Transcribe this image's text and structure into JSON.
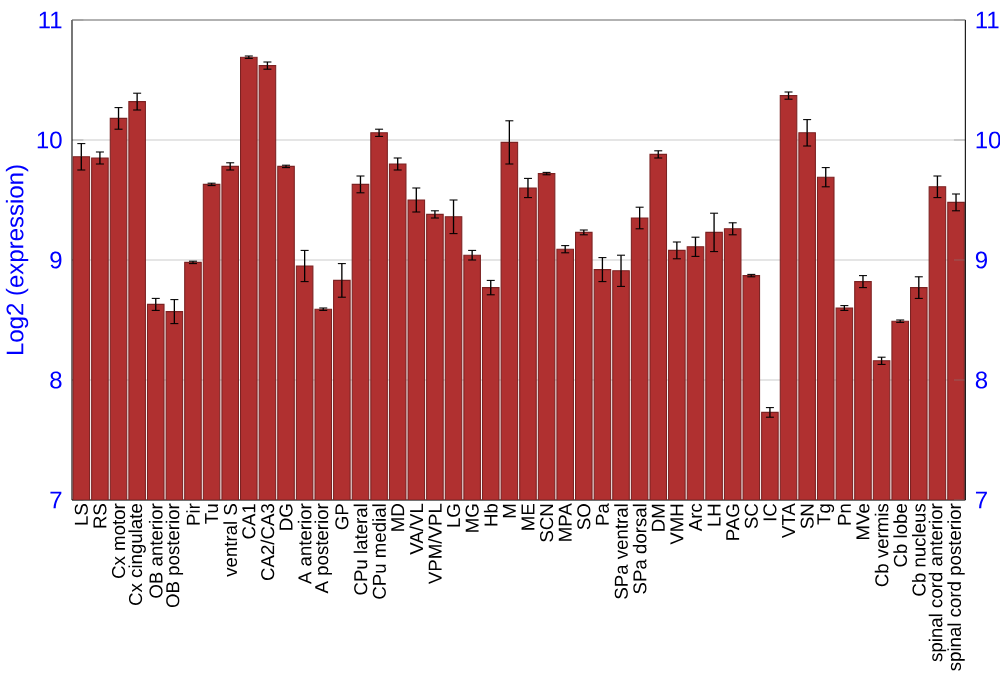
{
  "chart_data": {
    "type": "bar",
    "ylabel": "Log2 (expression)",
    "categories": [
      "LS",
      "RS",
      "Cx motor",
      "Cx cingulate",
      "OB anterior",
      "OB posterior",
      "Pir",
      "Tu",
      "ventral S",
      "CA1",
      "CA2/CA3",
      "DG",
      "A anterior",
      "A posterior",
      "GP",
      "CPu lateral",
      "CPu medial",
      "MD",
      "VA/VL",
      "VPM/VPL",
      "LG",
      "MG",
      "Hb",
      "M",
      "ME",
      "SCN",
      "MPA",
      "SO",
      "Pa",
      "SPa ventral",
      "SPa dorsal",
      "DM",
      "VMH",
      "Arc",
      "LH",
      "PAG",
      "SC",
      "IC",
      "VTA",
      "SN",
      "Tg",
      "Pn",
      "MVe",
      "Cb vermis",
      "Cb lobe",
      "Cb nucleus",
      "spinal cord anterior",
      "spinal cord posterior"
    ],
    "values": [
      9.86,
      9.85,
      10.18,
      10.32,
      8.63,
      8.57,
      8.98,
      9.63,
      9.78,
      10.69,
      10.62,
      9.78,
      8.95,
      8.59,
      8.83,
      9.63,
      10.06,
      9.8,
      9.5,
      9.38,
      9.36,
      9.04,
      8.77,
      9.98,
      9.6,
      9.72,
      9.09,
      9.23,
      8.92,
      8.91,
      9.35,
      9.88,
      9.08,
      9.11,
      9.23,
      9.26,
      8.87,
      7.73,
      10.37,
      10.06,
      9.69,
      8.6,
      8.82,
      8.16,
      8.49,
      8.77,
      9.61,
      9.48
    ],
    "errors": [
      0.11,
      0.05,
      0.09,
      0.07,
      0.05,
      0.1,
      0.01,
      0.01,
      0.03,
      0.01,
      0.03,
      0.01,
      0.13,
      0.01,
      0.14,
      0.07,
      0.03,
      0.05,
      0.1,
      0.03,
      0.14,
      0.04,
      0.06,
      0.18,
      0.08,
      0.01,
      0.03,
      0.02,
      0.1,
      0.13,
      0.09,
      0.03,
      0.07,
      0.08,
      0.16,
      0.05,
      0.01,
      0.04,
      0.03,
      0.11,
      0.08,
      0.02,
      0.05,
      0.03,
      0.01,
      0.09,
      0.09,
      0.07
    ],
    "color": "#b03030",
    "ylim": [
      7,
      11
    ],
    "yticks": [
      7,
      8,
      9,
      10,
      11
    ],
    "y2lim": [
      7,
      11
    ],
    "y2ticks": [
      7,
      8,
      9,
      10,
      11
    ],
    "grid": "y"
  }
}
